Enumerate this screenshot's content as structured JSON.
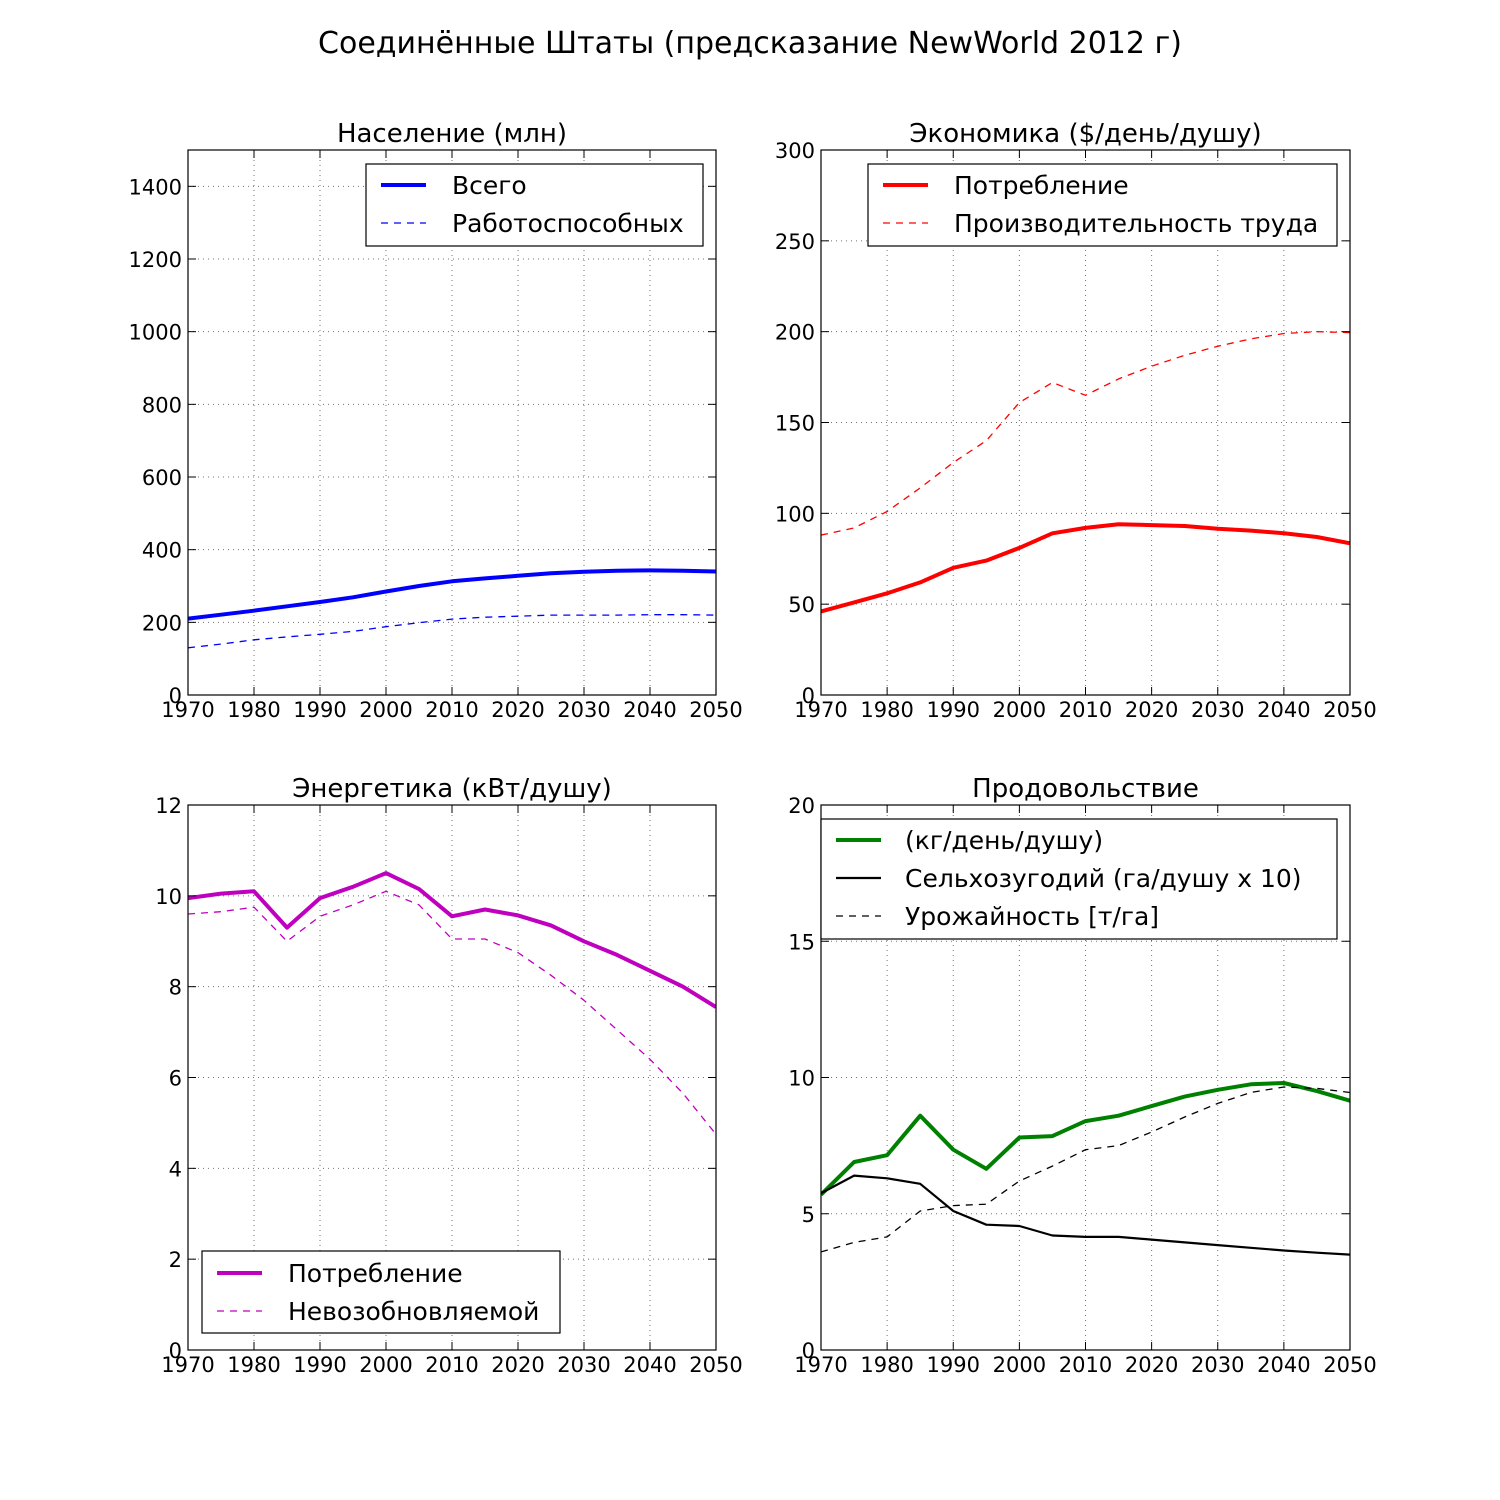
{
  "suptitle": "Соединённые Штаты (предсказание NewWorld 2012 г)",
  "colors": {
    "blue": "#0000ff",
    "red": "#ff0000",
    "magenta": "#bf00bf",
    "green": "#008000",
    "black": "#000000"
  },
  "chart_data": [
    {
      "type": "line",
      "title": "Население (млн)",
      "xlim": [
        1970,
        2050
      ],
      "ylim": [
        0,
        1500
      ],
      "xticks": [
        1970,
        1980,
        1990,
        2000,
        2010,
        2020,
        2030,
        2040,
        2050
      ],
      "yticks": [
        0,
        200,
        400,
        600,
        800,
        1000,
        1200,
        1400
      ],
      "grid": true,
      "legend_position": "top-right",
      "x": [
        1970,
        1975,
        1980,
        1985,
        1990,
        1995,
        2000,
        2005,
        2010,
        2015,
        2020,
        2025,
        2030,
        2035,
        2040,
        2045,
        2050
      ],
      "series": [
        {
          "name": "Всего",
          "style": "solid",
          "color": "#0000ff",
          "values": [
            210,
            221,
            232,
            244,
            256,
            269,
            285,
            300,
            313,
            321,
            328,
            335,
            339,
            342,
            343,
            342,
            340
          ]
        },
        {
          "name": "Работоспособных",
          "style": "dashed",
          "color": "#0000ff",
          "values": [
            130,
            140,
            152,
            160,
            167,
            175,
            188,
            199,
            209,
            214,
            217,
            220,
            220,
            220,
            221,
            221,
            220
          ]
        }
      ]
    },
    {
      "type": "line",
      "title": "Экономика ($/день/душу)",
      "xlim": [
        1970,
        2050
      ],
      "ylim": [
        0,
        300
      ],
      "xticks": [
        1970,
        1980,
        1990,
        2000,
        2010,
        2020,
        2030,
        2040,
        2050
      ],
      "yticks": [
        0,
        50,
        100,
        150,
        200,
        250,
        300
      ],
      "grid": true,
      "legend_position": "top-right",
      "x": [
        1970,
        1975,
        1980,
        1985,
        1990,
        1995,
        2000,
        2005,
        2010,
        2015,
        2020,
        2025,
        2030,
        2035,
        2040,
        2045,
        2050
      ],
      "series": [
        {
          "name": "Потребление",
          "style": "solid",
          "color": "#ff0000",
          "values": [
            46,
            51,
            56,
            62,
            70,
            74,
            81,
            89,
            92,
            94,
            93.5,
            93,
            91.5,
            90.5,
            89,
            87,
            83.5
          ]
        },
        {
          "name": "Производительность труда",
          "style": "dashed",
          "color": "#ff0000",
          "values": [
            88,
            92,
            101,
            114,
            128,
            140,
            161,
            172,
            165,
            174,
            181,
            187,
            192,
            196,
            199,
            200,
            199.5
          ]
        }
      ]
    },
    {
      "type": "line",
      "title": "Энергетика (кВт/душу)",
      "xlim": [
        1970,
        2050
      ],
      "ylim": [
        0,
        12
      ],
      "xticks": [
        1970,
        1980,
        1990,
        2000,
        2010,
        2020,
        2030,
        2040,
        2050
      ],
      "yticks": [
        0,
        2,
        4,
        6,
        8,
        10,
        12
      ],
      "grid": true,
      "legend_position": "bottom-left",
      "x": [
        1970,
        1975,
        1980,
        1985,
        1990,
        1995,
        2000,
        2005,
        2010,
        2015,
        2020,
        2025,
        2030,
        2035,
        2040,
        2045,
        2050
      ],
      "series": [
        {
          "name": "Потребление",
          "style": "solid",
          "color": "#bf00bf",
          "values": [
            9.95,
            10.05,
            10.1,
            9.3,
            9.95,
            10.2,
            10.5,
            10.15,
            9.55,
            9.7,
            9.57,
            9.35,
            9.0,
            8.7,
            8.35,
            8.0,
            7.55
          ]
        },
        {
          "name": "Невозобновляемой",
          "style": "dashed",
          "color": "#bf00bf",
          "values": [
            9.6,
            9.65,
            9.75,
            9.0,
            9.55,
            9.8,
            10.1,
            9.8,
            9.05,
            9.05,
            8.75,
            8.25,
            7.7,
            7.05,
            6.4,
            5.65,
            4.75
          ]
        }
      ]
    },
    {
      "type": "line",
      "title": "Продовольствие",
      "xlim": [
        1970,
        2050
      ],
      "ylim": [
        0,
        20
      ],
      "xticks": [
        1970,
        1980,
        1990,
        2000,
        2010,
        2020,
        2030,
        2040,
        2050
      ],
      "yticks": [
        0,
        5,
        10,
        15,
        20
      ],
      "grid": true,
      "legend_position": "top-left",
      "x": [
        1970,
        1975,
        1980,
        1985,
        1990,
        1995,
        2000,
        2005,
        2010,
        2015,
        2020,
        2025,
        2030,
        2035,
        2040,
        2045,
        2050
      ],
      "series": [
        {
          "name": "(кг/день/душу)",
          "style": "solid-thick",
          "color": "#008000",
          "values": [
            5.7,
            6.9,
            7.15,
            8.6,
            7.35,
            6.65,
            7.8,
            7.85,
            8.4,
            8.6,
            8.95,
            9.3,
            9.55,
            9.75,
            9.8,
            9.5,
            9.15
          ]
        },
        {
          "name": "Сельхозугодий (га/душу х 10)",
          "style": "solid",
          "color": "#000000",
          "values": [
            5.75,
            6.4,
            6.3,
            6.1,
            5.1,
            4.6,
            4.55,
            4.2,
            4.15,
            4.15,
            4.05,
            3.95,
            3.85,
            3.75,
            3.65,
            3.57,
            3.5
          ]
        },
        {
          "name": "Урожайность [т/га]",
          "style": "dashed",
          "color": "#000000",
          "values": [
            3.6,
            3.95,
            4.15,
            5.1,
            5.3,
            5.35,
            6.2,
            6.75,
            7.35,
            7.5,
            8.0,
            8.55,
            9.05,
            9.45,
            9.65,
            9.6,
            9.45
          ]
        }
      ]
    }
  ]
}
